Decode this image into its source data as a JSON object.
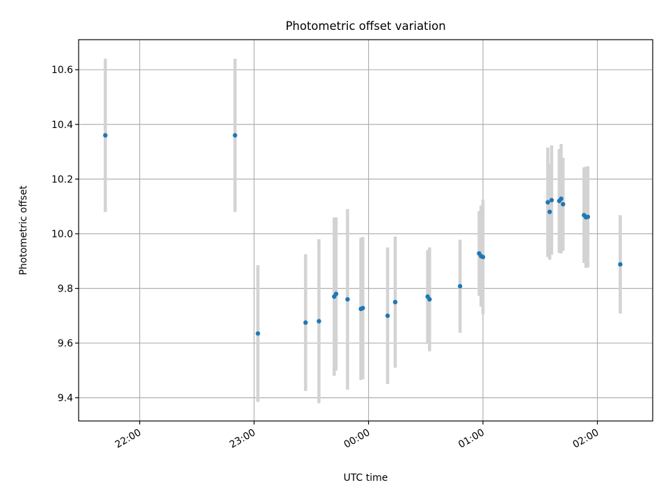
{
  "chart_data": {
    "type": "scatter",
    "title": "Photometric offset variation",
    "xlabel": "UTC time",
    "ylabel": "Photometric offset",
    "x_axis_type": "time",
    "x_ticks": [
      "22:00",
      "23:00",
      "00:00",
      "01:00",
      "02:00"
    ],
    "y_ticks": [
      9.4,
      9.6,
      9.8,
      10.0,
      10.2,
      10.4,
      10.6
    ],
    "xlim": [
      "21:28",
      "02:29"
    ],
    "ylim": [
      9.315,
      10.71
    ],
    "grid": true,
    "colors": {
      "point": "#1f77b4",
      "errorbar": "#d3d3d3"
    },
    "points": [
      {
        "x": "21:42",
        "y": 10.36,
        "err": 0.28
      },
      {
        "x": "22:50",
        "y": 10.36,
        "err": 0.28
      },
      {
        "x": "23:02",
        "y": 9.635,
        "err": 0.25
      },
      {
        "x": "23:27",
        "y": 9.675,
        "err": 0.25
      },
      {
        "x": "23:34",
        "y": 9.68,
        "err": 0.3
      },
      {
        "x": "23:42",
        "y": 9.77,
        "err": 0.29
      },
      {
        "x": "23:43",
        "y": 9.78,
        "err": 0.28
      },
      {
        "x": "23:49",
        "y": 9.76,
        "err": 0.33
      },
      {
        "x": "23:56",
        "y": 9.725,
        "err": 0.26
      },
      {
        "x": "23:57",
        "y": 9.728,
        "err": 0.26
      },
      {
        "x": "00:10",
        "y": 9.7,
        "err": 0.25
      },
      {
        "x": "00:14",
        "y": 9.75,
        "err": 0.24
      },
      {
        "x": "00:31",
        "y": 9.77,
        "err": 0.17
      },
      {
        "x": "00:32",
        "y": 9.76,
        "err": 0.19
      },
      {
        "x": "00:48",
        "y": 9.808,
        "err": 0.17
      },
      {
        "x": "00:58",
        "y": 9.928,
        "err": 0.155
      },
      {
        "x": "00:59",
        "y": 9.918,
        "err": 0.185
      },
      {
        "x": "01:00",
        "y": 9.915,
        "err": 0.21
      },
      {
        "x": "01:34",
        "y": 10.115,
        "err": 0.2
      },
      {
        "x": "01:35",
        "y": 10.08,
        "err": 0.175
      },
      {
        "x": "01:36",
        "y": 10.123,
        "err": 0.2
      },
      {
        "x": "01:40",
        "y": 10.12,
        "err": 0.19
      },
      {
        "x": "01:41",
        "y": 10.128,
        "err": 0.2
      },
      {
        "x": "01:42",
        "y": 10.108,
        "err": 0.17
      },
      {
        "x": "01:53",
        "y": 10.068,
        "err": 0.175
      },
      {
        "x": "01:54",
        "y": 10.06,
        "err": 0.185
      },
      {
        "x": "01:55",
        "y": 10.062,
        "err": 0.185
      },
      {
        "x": "02:12",
        "y": 9.888,
        "err": 0.18
      }
    ]
  }
}
